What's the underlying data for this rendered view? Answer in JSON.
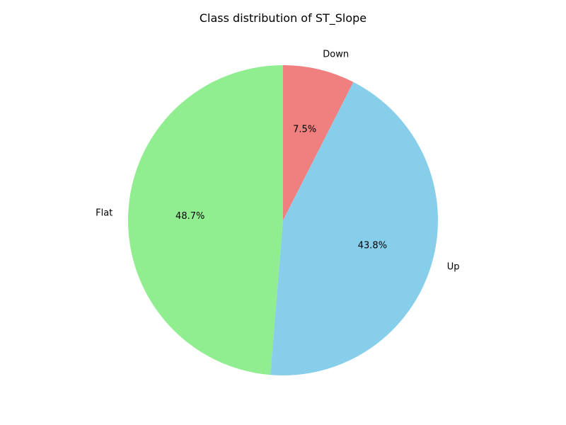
{
  "chart_data": {
    "type": "pie",
    "title": "Class distribution of ST_Slope",
    "start_angle": "top",
    "direction": "counterclockwise",
    "slices": [
      {
        "label": "Flat",
        "value": 48.7,
        "pct_label": "48.7%",
        "color": "#90EE90"
      },
      {
        "label": "Up",
        "value": 43.8,
        "pct_label": "43.8%",
        "color": "#87CEEB"
      },
      {
        "label": "Down",
        "value": 7.5,
        "pct_label": "7.5%",
        "color": "#F08080"
      }
    ]
  }
}
